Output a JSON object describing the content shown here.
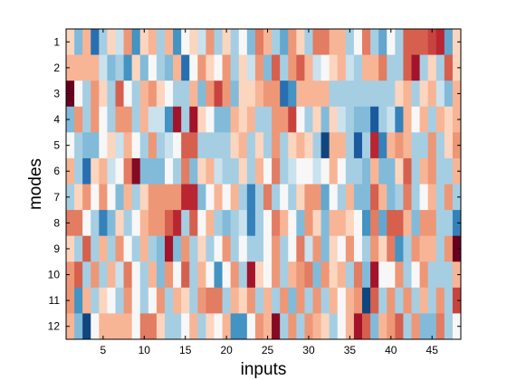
{
  "chart_data": {
    "type": "heatmap",
    "title": "",
    "xlabel": "inputs",
    "ylabel": "modes",
    "xlim": [
      0.5,
      48.5
    ],
    "ylim": [
      0.5,
      12.5
    ],
    "xticks": [
      5,
      10,
      15,
      20,
      25,
      30,
      35,
      40,
      45
    ],
    "yticks": [
      1,
      2,
      3,
      4,
      5,
      6,
      7,
      8,
      9,
      10,
      11,
      12
    ],
    "colormap": "RdBu-reversed",
    "value_range": [
      -1,
      1
    ],
    "grid": false,
    "values": [
      [
        0.1,
        -0.3,
        0.2,
        -0.7,
        -0.2,
        0.1,
        -0.1,
        0.3,
        -0.5,
        0.1,
        0.2,
        -0.2,
        0.2,
        -0.5,
        0.0,
        0.1,
        -0.1,
        0.3,
        -0.2,
        0.1,
        -0.2,
        0.0,
        -0.3,
        0.4,
        0.2,
        -0.2,
        -0.4,
        0.3,
        0.1,
        -0.2,
        0.4,
        0.4,
        0.2,
        0.2,
        -0.2,
        0.0,
        0.4,
        -0.2,
        -0.4,
        0.0,
        -0.2,
        0.5,
        0.5,
        0.5,
        0.6,
        0.7,
        -0.4,
        0.1
      ],
      [
        0.2,
        0.2,
        0.2,
        0.2,
        -0.1,
        -0.3,
        -0.2,
        -0.5,
        0.1,
        -0.3,
        0.0,
        -0.2,
        -0.3,
        0.2,
        -0.7,
        0.0,
        0.3,
        0.1,
        0.0,
        0.3,
        -0.2,
        0.1,
        -0.1,
        0.3,
        -0.3,
        0.5,
        -0.2,
        0.3,
        0.5,
        0.2,
        -0.1,
        0.0,
        0.1,
        0.2,
        -0.1,
        -0.2,
        0.2,
        0.2,
        0.4,
        -0.2,
        -0.2,
        0.5,
        0.8,
        -0.2,
        0.1,
        -0.2,
        0.5,
        0.1
      ],
      [
        1.0,
        0.0,
        -0.2,
        0.3,
        0.1,
        -0.2,
        0.5,
        0.0,
        -0.2,
        0.2,
        0.3,
        0.1,
        0.0,
        -0.2,
        -0.2,
        0.2,
        -0.3,
        0.3,
        0.6,
        0.3,
        -0.3,
        0.1,
        0.1,
        0.2,
        0.3,
        0.3,
        -0.7,
        -0.5,
        0.2,
        0.2,
        0.2,
        0.2,
        -0.2,
        -0.2,
        -0.2,
        -0.2,
        -0.2,
        -0.2,
        -0.2,
        -0.2,
        0.1,
        0.2,
        -0.2,
        0.1,
        0.2,
        -0.1,
        -0.3,
        0.2
      ],
      [
        -0.3,
        0.3,
        -0.2,
        0.3,
        0.0,
        -0.2,
        0.3,
        0.3,
        -0.2,
        0.2,
        -0.1,
        -0.1,
        -0.5,
        0.8,
        -0.2,
        0.8,
        0.1,
        0.0,
        -0.3,
        -0.3,
        0.2,
        0.1,
        0.2,
        -0.2,
        -0.2,
        0.3,
        0.3,
        0.6,
        0.0,
        -0.2,
        0.1,
        -0.3,
        0.1,
        -0.1,
        -0.2,
        -0.3,
        -0.3,
        -0.8,
        -0.2,
        -0.1,
        -0.6,
        0.2,
        0.0,
        0.2,
        -0.2,
        0.2,
        0.1,
        0.2
      ],
      [
        0.0,
        -0.2,
        -0.3,
        -0.3,
        0.0,
        0.1,
        -0.1,
        0.2,
        0.0,
        -0.2,
        0.3,
        -0.2,
        -0.1,
        0.0,
        0.5,
        0.5,
        -0.2,
        -0.2,
        -0.2,
        -0.2,
        0.1,
        0.2,
        -0.2,
        0.1,
        -0.2,
        0.3,
        -0.2,
        0.1,
        0.2,
        0.1,
        -0.2,
        -0.9,
        0.2,
        0.2,
        -0.2,
        -0.8,
        -0.2,
        0.7,
        -0.6,
        0.2,
        0.3,
        0.2,
        -0.2,
        -0.2,
        0.3,
        -0.2,
        0.1,
        0.3
      ],
      [
        0.2,
        -0.2,
        -0.7,
        0.1,
        0.2,
        -0.1,
        0.0,
        0.4,
        0.9,
        -0.3,
        -0.3,
        -0.3,
        0.0,
        -0.2,
        0.4,
        -0.3,
        0.1,
        0.2,
        -0.1,
        -0.2,
        -0.2,
        0.1,
        -0.2,
        0.2,
        0.0,
        0.4,
        -0.2,
        -0.1,
        0.0,
        0.0,
        -0.1,
        0.0,
        0.2,
        0.0,
        -0.2,
        -0.2,
        -0.3,
        0.2,
        -0.3,
        -0.3,
        0.1,
        0.5,
        -0.2,
        0.2,
        0.3,
        -0.2,
        -0.2,
        0.2
      ],
      [
        -0.2,
        0.1,
        0.3,
        0.0,
        0.3,
        0.0,
        -0.3,
        0.2,
        -0.2,
        0.1,
        0.3,
        0.3,
        0.3,
        0.3,
        0.7,
        0.7,
        -0.3,
        0.0,
        0.2,
        0.0,
        0.2,
        -0.2,
        -0.6,
        -0.2,
        0.4,
        -0.2,
        0.0,
        -0.2,
        0.1,
        0.3,
        0.3,
        -0.4,
        0.0,
        -0.2,
        0.2,
        -0.3,
        -0.3,
        0.5,
        0.2,
        -0.3,
        -0.2,
        0.4,
        -0.2,
        0.0,
        0.2,
        -0.2,
        0.3,
        -0.2
      ],
      [
        0.4,
        0.4,
        0.0,
        -0.2,
        -0.6,
        -0.3,
        0.1,
        -0.2,
        0.0,
        0.2,
        0.3,
        0.3,
        0.5,
        0.7,
        -0.2,
        0.5,
        0.0,
        0.2,
        -0.2,
        -0.3,
        -0.2,
        -0.1,
        -0.6,
        -0.2,
        0.0,
        0.4,
        0.2,
        0.0,
        -0.3,
        0.3,
        0.1,
        -0.3,
        0.2,
        0.2,
        0.1,
        0.0,
        -0.5,
        0.4,
        -0.4,
        0.5,
        0.5,
        0.2,
        -0.3,
        0.3,
        0.3,
        -0.2,
        -0.2,
        -0.6
      ],
      [
        0.1,
        -0.2,
        0.5,
        -0.2,
        0.2,
        -0.2,
        0.3,
        0.0,
        -0.2,
        0.2,
        -0.2,
        -0.3,
        0.8,
        -0.3,
        0.3,
        -0.2,
        0.1,
        -0.2,
        0.0,
        0.3,
        -0.2,
        0.0,
        -0.2,
        -0.2,
        0.0,
        0.3,
        -0.2,
        0.0,
        0.4,
        -0.1,
        0.3,
        -0.3,
        0.1,
        0.0,
        0.3,
        0.0,
        -0.2,
        0.3,
        0.1,
        0.4,
        -0.5,
        -0.2,
        0.3,
        0.2,
        0.2,
        -0.2,
        0.3,
        1.0
      ],
      [
        0.3,
        0.5,
        -0.2,
        0.3,
        -0.2,
        0.2,
        -0.1,
        0.4,
        0.0,
        -0.2,
        0.2,
        -0.3,
        0.3,
        0.0,
        0.5,
        -0.2,
        0.2,
        0.0,
        -0.5,
        0.0,
        0.3,
        -0.2,
        0.8,
        0.1,
        0.0,
        0.3,
        -0.2,
        0.2,
        0.3,
        0.4,
        -0.3,
        0.3,
        0.1,
        0.2,
        -0.2,
        0.4,
        -0.3,
        0.8,
        0.0,
        0.0,
        0.3,
        -0.2,
        0.0,
        0.3,
        -0.2,
        -0.2,
        -0.2,
        0.2
      ],
      [
        0.3,
        -0.5,
        0.2,
        -0.2,
        0.1,
        0.0,
        -0.2,
        0.3,
        0.0,
        -0.2,
        0.0,
        0.3,
        -0.2,
        0.2,
        0.1,
        -0.2,
        0.3,
        0.4,
        0.4,
        -0.2,
        0.2,
        0.1,
        0.3,
        -0.2,
        0.2,
        -0.2,
        0.3,
        -0.3,
        0.3,
        -0.2,
        0.3,
        -0.2,
        0.2,
        0.0,
        0.2,
        0.3,
        -0.9,
        0.5,
        -0.2,
        0.3,
        -0.2,
        0.3,
        -0.2,
        0.2,
        -0.2,
        0.3,
        -0.2,
        0.6
      ],
      [
        0.2,
        -0.3,
        -0.9,
        0.0,
        0.2,
        0.2,
        0.2,
        0.2,
        0.0,
        0.4,
        0.4,
        0.1,
        -0.2,
        -0.2,
        0.0,
        0.2,
        -0.2,
        0.1,
        0.0,
        0.2,
        -0.5,
        -0.5,
        0.0,
        0.3,
        0.2,
        0.9,
        -0.2,
        0.3,
        -0.2,
        0.3,
        0.2,
        0.1,
        -0.2,
        0.0,
        0.2,
        0.8,
        0.5,
        -0.3,
        0.2,
        0.3,
        0.5,
        -0.2,
        0.3,
        -0.3,
        -0.3,
        0.4,
        -0.2,
        0.0
      ]
    ]
  }
}
